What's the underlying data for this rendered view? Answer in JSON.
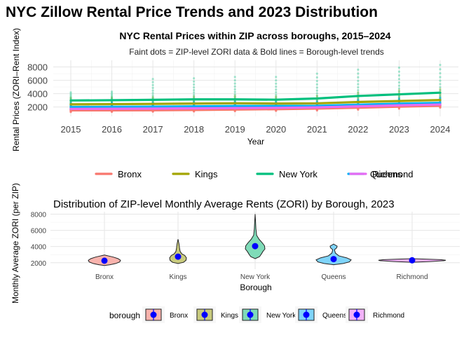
{
  "title": "NYC Zillow Rental Price Trends and 2023 Distribution",
  "chart_data": [
    {
      "type": "line",
      "title": "NYC Rental Prices within ZIP across boroughs, 2015–2024",
      "subtitle": "Faint dots = ZIP-level ZORI data & Bold lines = Borough-level trends",
      "xlabel": "Year",
      "ylabel": "Rental Prices (ZORI–Rent Index)",
      "x": [
        2015,
        2016,
        2017,
        2018,
        2019,
        2020,
        2021,
        2022,
        2023,
        2024
      ],
      "x_ticks": [
        "2015",
        "2016",
        "2017",
        "2018",
        "2019",
        "2020",
        "2021",
        "2022",
        "2023",
        "2024"
      ],
      "y_ticks": [
        "2000",
        "4000",
        "6000",
        "8000"
      ],
      "ylim": [
        600,
        9000
      ],
      "grid": true,
      "legend_position": "bottom",
      "series": [
        {
          "name": "Bronx",
          "color": "#F8766D",
          "values": [
            1500,
            1500,
            1520,
            1560,
            1620,
            1680,
            1760,
            1900,
            2050,
            2180
          ],
          "zip_min": [
            1250,
            1270,
            1300,
            1330,
            1380,
            1420,
            1480,
            1600,
            1750,
            1900
          ],
          "zip_max": [
            1850,
            1880,
            1900,
            1950,
            2000,
            2050,
            2150,
            2350,
            2500,
            2650
          ]
        },
        {
          "name": "Kings",
          "color": "#A3A500",
          "values": [
            2400,
            2430,
            2470,
            2520,
            2560,
            2520,
            2550,
            2750,
            2900,
            3050
          ],
          "zip_min": [
            1600,
            1650,
            1700,
            1750,
            1800,
            1780,
            1800,
            1950,
            2100,
            2200
          ],
          "zip_max": [
            3400,
            3450,
            3500,
            3600,
            3700,
            3600,
            3700,
            4200,
            4500,
            4700
          ]
        },
        {
          "name": "New York",
          "color": "#00BF7D",
          "values": [
            2980,
            3020,
            3080,
            3150,
            3150,
            3100,
            3280,
            3650,
            3900,
            4150
          ],
          "zip_min": [
            2200,
            2250,
            2300,
            2350,
            2350,
            2250,
            2300,
            2700,
            2900,
            3000
          ],
          "zip_max": [
            4200,
            4300,
            6200,
            6300,
            6500,
            6500,
            7000,
            7600,
            7900,
            8300
          ]
        },
        {
          "name": "Queens",
          "color": "#00B0F6",
          "values": [
            2000,
            2030,
            2060,
            2100,
            2150,
            2150,
            2180,
            2350,
            2500,
            2620
          ],
          "zip_min": [
            1600,
            1620,
            1650,
            1700,
            1750,
            1750,
            1800,
            1950,
            2100,
            2200
          ],
          "zip_max": [
            2600,
            2650,
            2700,
            2750,
            2800,
            2800,
            2850,
            3100,
            3300,
            3450
          ]
        },
        {
          "name": "Richmond",
          "color": "#E76BF3",
          "values": [
            1720,
            1740,
            1770,
            1810,
            1850,
            1880,
            1950,
            2100,
            2250,
            2380
          ],
          "zip_min": [
            1600,
            1620,
            1650,
            1690,
            1720,
            1750,
            1820,
            1950,
            2100,
            2200
          ],
          "zip_max": [
            1850,
            1870,
            1900,
            1940,
            1980,
            2010,
            2100,
            2250,
            2400,
            2550
          ]
        }
      ]
    },
    {
      "type": "violin",
      "title": "Distribution of ZIP-level Monthly Average Rents (ZORI) by Borough, 2023",
      "xlabel": "Borough",
      "ylabel": "Monthly Average ZORI (per ZIP)",
      "categories": [
        "Bronx",
        "Kings",
        "New York",
        "Queens",
        "Richmond"
      ],
      "y_ticks": [
        "2000",
        "4000",
        "6000",
        "8000"
      ],
      "ylim": [
        1200,
        8300
      ],
      "legend_title": "borough",
      "legend_position": "bottom",
      "mean_color": "#0000FF",
      "series": [
        {
          "name": "Bronx",
          "color": "#F8766D",
          "fill": "#F9B3AD",
          "mean": 2250,
          "min": 1650,
          "max": 2950,
          "profile": [
            [
              1650,
              0.0
            ],
            [
              1750,
              0.35
            ],
            [
              1900,
              0.7
            ],
            [
              2100,
              0.95
            ],
            [
              2300,
              1.0
            ],
            [
              2500,
              0.85
            ],
            [
              2700,
              0.55
            ],
            [
              2950,
              0.0
            ]
          ]
        },
        {
          "name": "Kings",
          "color": "#A3A500",
          "fill": "#C9CB7E",
          "mean": 2750,
          "min": 1900,
          "max": 4900,
          "profile": [
            [
              1900,
              0.0
            ],
            [
              2050,
              0.65
            ],
            [
              2300,
              0.95
            ],
            [
              2600,
              1.0
            ],
            [
              2900,
              0.8
            ],
            [
              3100,
              0.45
            ],
            [
              3400,
              0.25
            ],
            [
              3800,
              0.18
            ],
            [
              4300,
              0.12
            ],
            [
              4900,
              0.0
            ]
          ]
        },
        {
          "name": "New York",
          "color": "#00BF7D",
          "fill": "#7FDBB8",
          "mean": 4050,
          "min": 2500,
          "max": 8000,
          "profile": [
            [
              2500,
              0.0
            ],
            [
              2750,
              0.45
            ],
            [
              3100,
              0.65
            ],
            [
              3400,
              0.8
            ],
            [
              3700,
              1.0
            ],
            [
              4100,
              0.95
            ],
            [
              4500,
              0.7
            ],
            [
              4900,
              0.4
            ],
            [
              5400,
              0.15
            ],
            [
              6200,
              0.08
            ],
            [
              7200,
              0.04
            ],
            [
              8000,
              0.0
            ]
          ]
        },
        {
          "name": "Queens",
          "color": "#00B0F6",
          "fill": "#7FD4FA",
          "mean": 2450,
          "min": 1750,
          "max": 4300,
          "profile": [
            [
              1750,
              0.0
            ],
            [
              1900,
              0.55
            ],
            [
              2100,
              0.9
            ],
            [
              2350,
              1.0
            ],
            [
              2600,
              0.75
            ],
            [
              2850,
              0.3
            ],
            [
              3200,
              0.1
            ],
            [
              3600,
              0.05
            ],
            [
              3850,
              0.18
            ],
            [
              4050,
              0.2
            ],
            [
              4300,
              0.0
            ]
          ]
        },
        {
          "name": "Richmond",
          "color": "#E76BF3",
          "fill": "#F2B2F8",
          "mean": 2300,
          "min": 2050,
          "max": 2500,
          "profile": [
            [
              2050,
              0.0
            ],
            [
              2150,
              0.55
            ],
            [
              2250,
              0.95
            ],
            [
              2300,
              1.0
            ],
            [
              2380,
              0.85
            ],
            [
              2450,
              0.4
            ],
            [
              2500,
              0.0
            ]
          ]
        }
      ]
    }
  ]
}
